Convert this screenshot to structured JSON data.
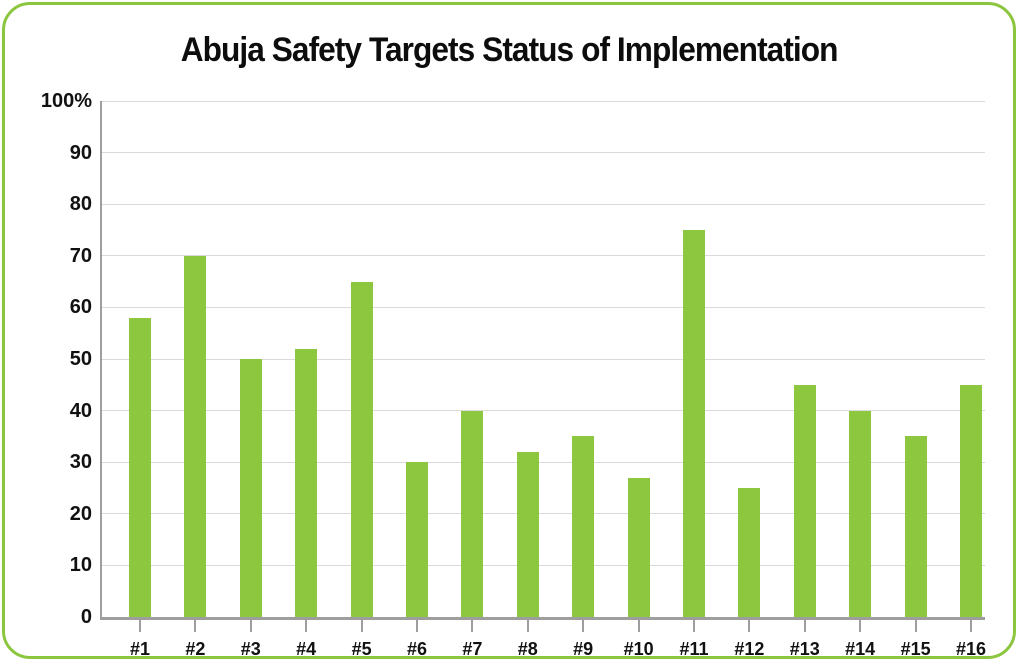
{
  "frame": {
    "border_color": "#8CC63F",
    "background_color": "#FFFFFF"
  },
  "chart_data": {
    "type": "bar",
    "title": "Abuja Safety Targets Status of Implementation",
    "categories": [
      "#1",
      "#2",
      "#3",
      "#4",
      "#5",
      "#6",
      "#7",
      "#8",
      "#9",
      "#10",
      "#11",
      "#12",
      "#13",
      "#14",
      "#15",
      "#16"
    ],
    "values": [
      58,
      70,
      50,
      52,
      65,
      30,
      40,
      32,
      35,
      27,
      75,
      25,
      45,
      40,
      35,
      45
    ],
    "xlabel": "",
    "ylabel": "",
    "ylim": [
      0,
      100
    ],
    "y_ticks": [
      {
        "value": 100,
        "label": "100%"
      },
      {
        "value": 90,
        "label": "90"
      },
      {
        "value": 80,
        "label": "80"
      },
      {
        "value": 70,
        "label": "70"
      },
      {
        "value": 60,
        "label": "60"
      },
      {
        "value": 50,
        "label": "50"
      },
      {
        "value": 40,
        "label": "40"
      },
      {
        "value": 30,
        "label": "30"
      },
      {
        "value": 20,
        "label": "20"
      },
      {
        "value": 10,
        "label": "10"
      },
      {
        "value": 0,
        "label": "0"
      }
    ],
    "grid": "horizontal",
    "legend": "none",
    "bar_color": "#8DC63F",
    "gridline_color": "#DADADA",
    "axis_color": "#9E9E9E",
    "text_color": "#111111"
  }
}
